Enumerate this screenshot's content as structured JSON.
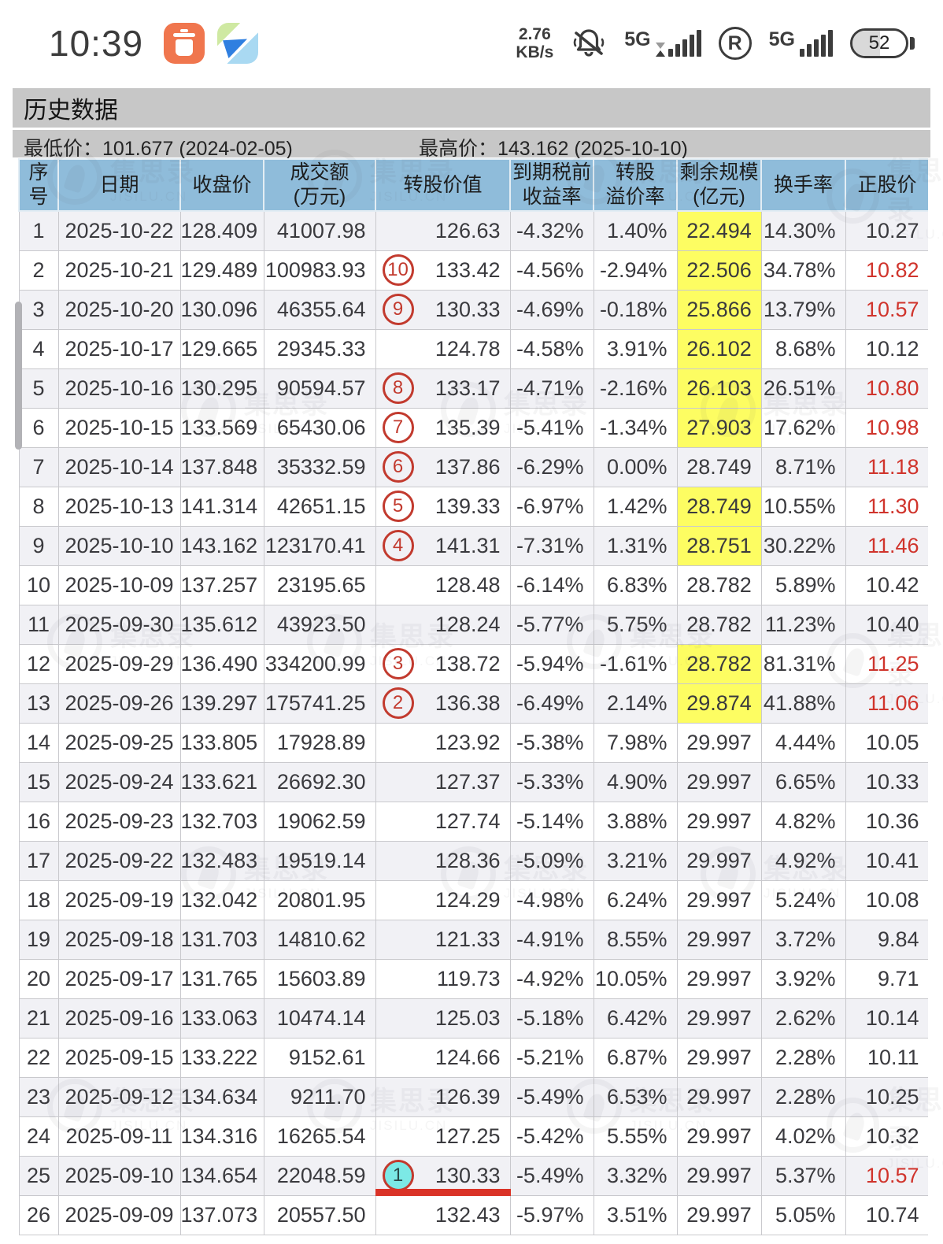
{
  "status_bar": {
    "time": "10:39",
    "net_speed_value": "2.76",
    "net_speed_unit": "KB/s",
    "sim1_label": "5G",
    "sim2_label": "5G",
    "roaming_label": "R",
    "battery_percent": "52"
  },
  "header": {
    "title": "历史数据",
    "min_price": "最低价：101.677 (2024-02-05)",
    "max_price": "最高价：143.162 (2025-10-10)"
  },
  "watermark": {
    "name": "集思录",
    "domain": "JISILU.CN"
  },
  "colors": {
    "table_header_bg": "#8fbcda",
    "highlight_yellow": "#fdfd62",
    "price_red": "#d0342c",
    "badge_red": "#c23a2e",
    "badge_cyan_fill": "#7ce9e6",
    "underline_red": "#da3327",
    "odd_row_bg": "#f1f1f5",
    "page_header_bg": "#c7c7c7"
  },
  "table": {
    "headers": [
      "序号",
      "日期",
      "收盘价",
      "成交额\n(万元)",
      "转股价值",
      "到期税前\n收益率",
      "转股\n溢价率",
      "剩余规模\n(亿元)",
      "换手率",
      "正股价"
    ],
    "rows": [
      {
        "seq": 1,
        "date": "2025-10-22",
        "close": "128.409",
        "amount": "41007.98",
        "badge": null,
        "badge_filled": false,
        "conv": "126.63",
        "ytm": "-4.32%",
        "premium": "1.40%",
        "remain": "22.494",
        "remain_hl": true,
        "turn": "14.30%",
        "price": "10.27",
        "price_red": false,
        "conv_underline": false
      },
      {
        "seq": 2,
        "date": "2025-10-21",
        "close": "129.489",
        "amount": "100983.93",
        "badge": "10",
        "badge_filled": false,
        "conv": "133.42",
        "ytm": "-4.56%",
        "premium": "-2.94%",
        "remain": "22.506",
        "remain_hl": true,
        "turn": "34.78%",
        "price": "10.82",
        "price_red": true,
        "conv_underline": false
      },
      {
        "seq": 3,
        "date": "2025-10-20",
        "close": "130.096",
        "amount": "46355.64",
        "badge": "9",
        "badge_filled": false,
        "conv": "130.33",
        "ytm": "-4.69%",
        "premium": "-0.18%",
        "remain": "25.866",
        "remain_hl": true,
        "turn": "13.79%",
        "price": "10.57",
        "price_red": true,
        "conv_underline": false
      },
      {
        "seq": 4,
        "date": "2025-10-17",
        "close": "129.665",
        "amount": "29345.33",
        "badge": null,
        "badge_filled": false,
        "conv": "124.78",
        "ytm": "-4.58%",
        "premium": "3.91%",
        "remain": "26.102",
        "remain_hl": true,
        "turn": "8.68%",
        "price": "10.12",
        "price_red": false,
        "conv_underline": false
      },
      {
        "seq": 5,
        "date": "2025-10-16",
        "close": "130.295",
        "amount": "90594.57",
        "badge": "8",
        "badge_filled": false,
        "conv": "133.17",
        "ytm": "-4.71%",
        "premium": "-2.16%",
        "remain": "26.103",
        "remain_hl": true,
        "turn": "26.51%",
        "price": "10.80",
        "price_red": true,
        "conv_underline": false
      },
      {
        "seq": 6,
        "date": "2025-10-15",
        "close": "133.569",
        "amount": "65430.06",
        "badge": "7",
        "badge_filled": false,
        "conv": "135.39",
        "ytm": "-5.41%",
        "premium": "-1.34%",
        "remain": "27.903",
        "remain_hl": true,
        "turn": "17.62%",
        "price": "10.98",
        "price_red": true,
        "conv_underline": false
      },
      {
        "seq": 7,
        "date": "2025-10-14",
        "close": "137.848",
        "amount": "35332.59",
        "badge": "6",
        "badge_filled": false,
        "conv": "137.86",
        "ytm": "-6.29%",
        "premium": "0.00%",
        "remain": "28.749",
        "remain_hl": false,
        "turn": "8.71%",
        "price": "11.18",
        "price_red": true,
        "conv_underline": false
      },
      {
        "seq": 8,
        "date": "2025-10-13",
        "close": "141.314",
        "amount": "42651.15",
        "badge": "5",
        "badge_filled": false,
        "conv": "139.33",
        "ytm": "-6.97%",
        "premium": "1.42%",
        "remain": "28.749",
        "remain_hl": true,
        "turn": "10.55%",
        "price": "11.30",
        "price_red": true,
        "conv_underline": false
      },
      {
        "seq": 9,
        "date": "2025-10-10",
        "close": "143.162",
        "amount": "123170.41",
        "badge": "4",
        "badge_filled": false,
        "conv": "141.31",
        "ytm": "-7.31%",
        "premium": "1.31%",
        "remain": "28.751",
        "remain_hl": true,
        "turn": "30.22%",
        "price": "11.46",
        "price_red": true,
        "conv_underline": false
      },
      {
        "seq": 10,
        "date": "2025-10-09",
        "close": "137.257",
        "amount": "23195.65",
        "badge": null,
        "badge_filled": false,
        "conv": "128.48",
        "ytm": "-6.14%",
        "premium": "6.83%",
        "remain": "28.782",
        "remain_hl": false,
        "turn": "5.89%",
        "price": "10.42",
        "price_red": false,
        "conv_underline": false
      },
      {
        "seq": 11,
        "date": "2025-09-30",
        "close": "135.612",
        "amount": "43923.50",
        "badge": null,
        "badge_filled": false,
        "conv": "128.24",
        "ytm": "-5.77%",
        "premium": "5.75%",
        "remain": "28.782",
        "remain_hl": false,
        "turn": "11.23%",
        "price": "10.40",
        "price_red": false,
        "conv_underline": false
      },
      {
        "seq": 12,
        "date": "2025-09-29",
        "close": "136.490",
        "amount": "334200.99",
        "badge": "3",
        "badge_filled": false,
        "conv": "138.72",
        "ytm": "-5.94%",
        "premium": "-1.61%",
        "remain": "28.782",
        "remain_hl": true,
        "turn": "81.31%",
        "price": "11.25",
        "price_red": true,
        "conv_underline": false
      },
      {
        "seq": 13,
        "date": "2025-09-26",
        "close": "139.297",
        "amount": "175741.25",
        "badge": "2",
        "badge_filled": false,
        "conv": "136.38",
        "ytm": "-6.49%",
        "premium": "2.14%",
        "remain": "29.874",
        "remain_hl": true,
        "turn": "41.88%",
        "price": "11.06",
        "price_red": true,
        "conv_underline": false
      },
      {
        "seq": 14,
        "date": "2025-09-25",
        "close": "133.805",
        "amount": "17928.89",
        "badge": null,
        "badge_filled": false,
        "conv": "123.92",
        "ytm": "-5.38%",
        "premium": "7.98%",
        "remain": "29.997",
        "remain_hl": false,
        "turn": "4.44%",
        "price": "10.05",
        "price_red": false,
        "conv_underline": false
      },
      {
        "seq": 15,
        "date": "2025-09-24",
        "close": "133.621",
        "amount": "26692.30",
        "badge": null,
        "badge_filled": false,
        "conv": "127.37",
        "ytm": "-5.33%",
        "premium": "4.90%",
        "remain": "29.997",
        "remain_hl": false,
        "turn": "6.65%",
        "price": "10.33",
        "price_red": false,
        "conv_underline": false
      },
      {
        "seq": 16,
        "date": "2025-09-23",
        "close": "132.703",
        "amount": "19062.59",
        "badge": null,
        "badge_filled": false,
        "conv": "127.74",
        "ytm": "-5.14%",
        "premium": "3.88%",
        "remain": "29.997",
        "remain_hl": false,
        "turn": "4.82%",
        "price": "10.36",
        "price_red": false,
        "conv_underline": false
      },
      {
        "seq": 17,
        "date": "2025-09-22",
        "close": "132.483",
        "amount": "19519.14",
        "badge": null,
        "badge_filled": false,
        "conv": "128.36",
        "ytm": "-5.09%",
        "premium": "3.21%",
        "remain": "29.997",
        "remain_hl": false,
        "turn": "4.92%",
        "price": "10.41",
        "price_red": false,
        "conv_underline": false
      },
      {
        "seq": 18,
        "date": "2025-09-19",
        "close": "132.042",
        "amount": "20801.95",
        "badge": null,
        "badge_filled": false,
        "conv": "124.29",
        "ytm": "-4.98%",
        "premium": "6.24%",
        "remain": "29.997",
        "remain_hl": false,
        "turn": "5.24%",
        "price": "10.08",
        "price_red": false,
        "conv_underline": false
      },
      {
        "seq": 19,
        "date": "2025-09-18",
        "close": "131.703",
        "amount": "14810.62",
        "badge": null,
        "badge_filled": false,
        "conv": "121.33",
        "ytm": "-4.91%",
        "premium": "8.55%",
        "remain": "29.997",
        "remain_hl": false,
        "turn": "3.72%",
        "price": "9.84",
        "price_red": false,
        "conv_underline": false
      },
      {
        "seq": 20,
        "date": "2025-09-17",
        "close": "131.765",
        "amount": "15603.89",
        "badge": null,
        "badge_filled": false,
        "conv": "119.73",
        "ytm": "-4.92%",
        "premium": "10.05%",
        "remain": "29.997",
        "remain_hl": false,
        "turn": "3.92%",
        "price": "9.71",
        "price_red": false,
        "conv_underline": false
      },
      {
        "seq": 21,
        "date": "2025-09-16",
        "close": "133.063",
        "amount": "10474.14",
        "badge": null,
        "badge_filled": false,
        "conv": "125.03",
        "ytm": "-5.18%",
        "premium": "6.42%",
        "remain": "29.997",
        "remain_hl": false,
        "turn": "2.62%",
        "price": "10.14",
        "price_red": false,
        "conv_underline": false
      },
      {
        "seq": 22,
        "date": "2025-09-15",
        "close": "133.222",
        "amount": "9152.61",
        "badge": null,
        "badge_filled": false,
        "conv": "124.66",
        "ytm": "-5.21%",
        "premium": "6.87%",
        "remain": "29.997",
        "remain_hl": false,
        "turn": "2.28%",
        "price": "10.11",
        "price_red": false,
        "conv_underline": false
      },
      {
        "seq": 23,
        "date": "2025-09-12",
        "close": "134.634",
        "amount": "9211.70",
        "badge": null,
        "badge_filled": false,
        "conv": "126.39",
        "ytm": "-5.49%",
        "premium": "6.53%",
        "remain": "29.997",
        "remain_hl": false,
        "turn": "2.28%",
        "price": "10.25",
        "price_red": false,
        "conv_underline": false
      },
      {
        "seq": 24,
        "date": "2025-09-11",
        "close": "134.316",
        "amount": "16265.54",
        "badge": null,
        "badge_filled": false,
        "conv": "127.25",
        "ytm": "-5.42%",
        "premium": "5.55%",
        "remain": "29.997",
        "remain_hl": false,
        "turn": "4.02%",
        "price": "10.32",
        "price_red": false,
        "conv_underline": false
      },
      {
        "seq": 25,
        "date": "2025-09-10",
        "close": "134.654",
        "amount": "22048.59",
        "badge": "1",
        "badge_filled": true,
        "conv": "130.33",
        "ytm": "-5.49%",
        "premium": "3.32%",
        "remain": "29.997",
        "remain_hl": false,
        "turn": "5.37%",
        "price": "10.57",
        "price_red": true,
        "conv_underline": true
      },
      {
        "seq": 26,
        "date": "2025-09-09",
        "close": "137.073",
        "amount": "20557.50",
        "badge": null,
        "badge_filled": false,
        "conv": "132.43",
        "ytm": "-5.97%",
        "premium": "3.51%",
        "remain": "29.997",
        "remain_hl": false,
        "turn": "5.05%",
        "price": "10.74",
        "price_red": false,
        "conv_underline": false
      }
    ]
  }
}
